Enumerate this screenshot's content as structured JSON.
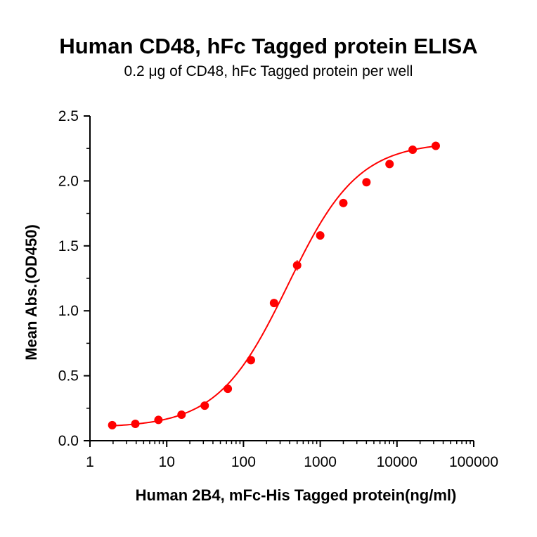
{
  "chart_data": {
    "type": "scatter",
    "title": "Human CD48, hFc Tagged protein ELISA",
    "subtitle": "0.2 μg of CD48, hFc Tagged protein per well",
    "xlabel": "Human 2B4, mFc-His Tagged protein(ng/ml)",
    "ylabel": "Mean Abs.(OD450)",
    "x_scale": "log",
    "xlim": [
      1,
      100000
    ],
    "ylim": [
      0,
      2.5
    ],
    "x_ticks": [
      1,
      10,
      100,
      1000,
      10000,
      100000
    ],
    "x_tick_labels": [
      "1",
      "10",
      "100",
      "1000",
      "10000",
      "100000"
    ],
    "y_ticks": [
      0,
      0.5,
      1.0,
      1.5,
      2.0,
      2.5
    ],
    "y_tick_labels": [
      "0.0",
      "0.5",
      "1.0",
      "1.5",
      "2.0",
      "2.5"
    ],
    "grid": false,
    "legend": "none",
    "color": "#ff0000",
    "series": [
      {
        "x": [
          1.95,
          3.9,
          7.8,
          15.6,
          31.25,
          62.5,
          125,
          250,
          500,
          1000,
          2000,
          4000,
          8000,
          16000,
          32000
        ],
        "y": [
          0.12,
          0.13,
          0.16,
          0.2,
          0.27,
          0.4,
          0.62,
          1.06,
          1.35,
          1.58,
          1.83,
          1.99,
          2.13,
          2.24,
          2.27
        ],
        "error": [
          0.01,
          0.01,
          0.01,
          0.01,
          0.01,
          0.01,
          0.01,
          0.01,
          0.04,
          0.01,
          0.01,
          0.03,
          0.01,
          0.01,
          0.01
        ]
      }
    ],
    "fit": {
      "model": "4PL",
      "bottom": 0.1,
      "top": 2.3,
      "ec50": 380,
      "hill": 0.95
    }
  }
}
